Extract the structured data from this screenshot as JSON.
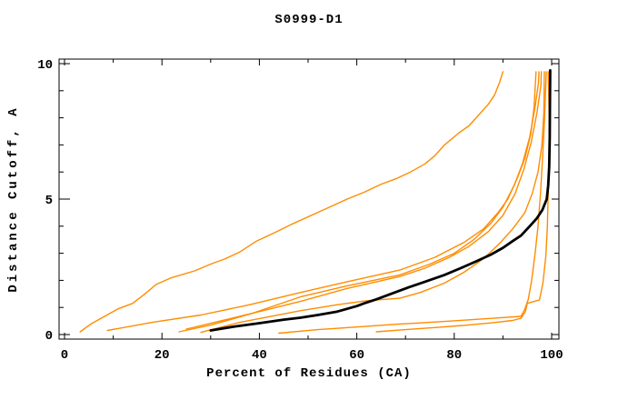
{
  "window": {
    "background": "#ffffff"
  },
  "chart_data": {
    "type": "line",
    "title": "S0999-D1",
    "xlabel": "Percent of Residues (CA)",
    "ylabel": "Distance Cutoff, A",
    "xlim": [
      0,
      100
    ],
    "ylim": [
      0,
      10
    ],
    "x_ticks": {
      "major": [
        0,
        20,
        40,
        60,
        80,
        100
      ],
      "minor_step": 10
    },
    "y_ticks": {
      "major": [
        0,
        5,
        10
      ],
      "minor_step": 1
    },
    "grid": false,
    "legend": "none",
    "axis_color": "#000000",
    "model_color": "#ff8c00",
    "reference_color": "#000000",
    "series": [
      {
        "name": "orange-curve-1-outlier",
        "color": "#ff8c00",
        "width": 1.4,
        "points": [
          [
            3.2,
            0.1
          ],
          [
            5.5,
            0.4
          ],
          [
            8,
            0.65
          ],
          [
            11,
            0.95
          ],
          [
            14,
            1.15
          ],
          [
            16.5,
            1.5
          ],
          [
            18.8,
            1.85
          ],
          [
            22,
            2.1
          ],
          [
            26.7,
            2.35
          ],
          [
            30,
            2.6
          ],
          [
            33,
            2.8
          ],
          [
            36,
            3.05
          ],
          [
            39.4,
            3.45
          ],
          [
            43,
            3.75
          ],
          [
            47,
            4.1
          ],
          [
            51.9,
            4.5
          ],
          [
            55,
            4.75
          ],
          [
            58,
            5.0
          ],
          [
            61.5,
            5.25
          ],
          [
            65,
            5.55
          ],
          [
            68,
            5.75
          ],
          [
            71,
            6.0
          ],
          [
            74,
            6.3
          ],
          [
            76,
            6.6
          ],
          [
            78,
            7.0
          ],
          [
            81,
            7.45
          ],
          [
            83,
            7.7
          ],
          [
            85,
            8.1
          ],
          [
            87,
            8.5
          ],
          [
            88.3,
            8.85
          ],
          [
            89.3,
            9.3
          ],
          [
            90,
            9.7
          ]
        ]
      },
      {
        "name": "orange-curve-2",
        "color": "#ff8c00",
        "width": 1.4,
        "points": [
          [
            8.8,
            0.15
          ],
          [
            18,
            0.45
          ],
          [
            28,
            0.72
          ],
          [
            38,
            1.1
          ],
          [
            48.4,
            1.55
          ],
          [
            58,
            1.95
          ],
          [
            68.8,
            2.38
          ],
          [
            76,
            2.85
          ],
          [
            82,
            3.4
          ],
          [
            86,
            3.9
          ],
          [
            89,
            4.5
          ],
          [
            91,
            5.0
          ],
          [
            93,
            5.8
          ],
          [
            94.5,
            6.5
          ],
          [
            95.7,
            7.4
          ],
          [
            96.4,
            8.4
          ],
          [
            96.8,
            9.7
          ]
        ]
      },
      {
        "name": "orange-curve-3",
        "color": "#ff8c00",
        "width": 1.4,
        "points": [
          [
            23.5,
            0.1
          ],
          [
            30,
            0.35
          ],
          [
            38,
            0.75
          ],
          [
            48.4,
            1.39
          ],
          [
            58,
            1.8
          ],
          [
            68.8,
            2.2
          ],
          [
            75,
            2.6
          ],
          [
            80,
            3.0
          ],
          [
            84,
            3.5
          ],
          [
            87.5,
            4.1
          ],
          [
            90,
            4.7
          ],
          [
            92.3,
            5.5
          ],
          [
            94,
            6.3
          ],
          [
            95.5,
            7.3
          ],
          [
            96.6,
            8.4
          ],
          [
            97.3,
            9.3
          ],
          [
            97.4,
            9.7
          ]
        ]
      },
      {
        "name": "orange-curve-4",
        "color": "#ff8c00",
        "width": 1.4,
        "points": [
          [
            25,
            0.2
          ],
          [
            32,
            0.5
          ],
          [
            40,
            0.85
          ],
          [
            48.4,
            1.22
          ],
          [
            58,
            1.7
          ],
          [
            68.8,
            2.14
          ],
          [
            74,
            2.45
          ],
          [
            79,
            2.85
          ],
          [
            83,
            3.25
          ],
          [
            87,
            3.8
          ],
          [
            90,
            4.4
          ],
          [
            92.5,
            5.2
          ],
          [
            94.3,
            6.1
          ],
          [
            95.8,
            7.1
          ],
          [
            97,
            8.2
          ],
          [
            97.8,
            9.2
          ],
          [
            97.9,
            9.7
          ]
        ]
      },
      {
        "name": "orange-curve-5",
        "color": "#ff8c00",
        "width": 1.4,
        "points": [
          [
            28,
            0.08
          ],
          [
            36,
            0.45
          ],
          [
            48.4,
            0.88
          ],
          [
            56,
            1.1
          ],
          [
            62,
            1.25
          ],
          [
            68.8,
            1.34
          ],
          [
            73,
            1.55
          ],
          [
            78,
            1.9
          ],
          [
            82,
            2.3
          ],
          [
            86,
            2.8
          ],
          [
            89.5,
            3.4
          ],
          [
            92,
            3.9
          ],
          [
            94.5,
            4.5
          ],
          [
            96,
            5.2
          ],
          [
            97.2,
            6.0
          ],
          [
            98,
            7.0
          ],
          [
            98.4,
            8.2
          ],
          [
            98.5,
            9.7
          ]
        ]
      },
      {
        "name": "orange-curve-6-staircase",
        "color": "#ff8c00",
        "width": 1.4,
        "points": [
          [
            44,
            0.05
          ],
          [
            52,
            0.18
          ],
          [
            60,
            0.28
          ],
          [
            68,
            0.38
          ],
          [
            75,
            0.45
          ],
          [
            82,
            0.53
          ],
          [
            88,
            0.6
          ],
          [
            93.7,
            0.67
          ],
          [
            94.4,
            0.9
          ],
          [
            95.2,
            1.3
          ],
          [
            95.9,
            2.0
          ],
          [
            96.6,
            3.0
          ],
          [
            97.2,
            4.0
          ],
          [
            97.7,
            5.2
          ],
          [
            98.1,
            6.4
          ],
          [
            98.5,
            7.8
          ],
          [
            98.9,
            9.7
          ]
        ]
      },
      {
        "name": "orange-curve-7-staircase",
        "color": "#ff8c00",
        "width": 1.4,
        "points": [
          [
            64,
            0.1
          ],
          [
            70,
            0.18
          ],
          [
            76,
            0.26
          ],
          [
            82,
            0.34
          ],
          [
            88,
            0.44
          ],
          [
            92,
            0.52
          ],
          [
            93.7,
            0.6
          ],
          [
            94.6,
            0.85
          ],
          [
            95,
            1.15
          ],
          [
            97.5,
            1.28
          ],
          [
            98.2,
            1.9
          ],
          [
            98.8,
            2.9
          ],
          [
            99.1,
            3.9
          ],
          [
            99.3,
            5.2
          ],
          [
            99.45,
            6.6
          ],
          [
            99.5,
            8.0
          ],
          [
            99.3,
            9.7
          ]
        ]
      },
      {
        "name": "black-reference-curve",
        "color": "#000000",
        "width": 2.8,
        "points": [
          [
            30,
            0.15
          ],
          [
            35,
            0.3
          ],
          [
            40,
            0.42
          ],
          [
            45,
            0.55
          ],
          [
            48.4,
            0.62
          ],
          [
            52,
            0.72
          ],
          [
            56,
            0.85
          ],
          [
            60,
            1.05
          ],
          [
            61.5,
            1.15
          ],
          [
            64,
            1.3
          ],
          [
            67,
            1.5
          ],
          [
            70.7,
            1.75
          ],
          [
            74,
            1.95
          ],
          [
            78,
            2.2
          ],
          [
            81.3,
            2.45
          ],
          [
            84.5,
            2.7
          ],
          [
            87.5,
            2.95
          ],
          [
            90,
            3.2
          ],
          [
            92,
            3.45
          ],
          [
            93.7,
            3.65
          ],
          [
            95.5,
            4.0
          ],
          [
            97,
            4.3
          ],
          [
            98.1,
            4.6
          ],
          [
            99,
            5.0
          ],
          [
            99.3,
            5.5
          ],
          [
            99.5,
            6.2
          ],
          [
            99.6,
            7.3
          ],
          [
            99.65,
            8.5
          ],
          [
            99.7,
            9.75
          ]
        ]
      }
    ]
  }
}
